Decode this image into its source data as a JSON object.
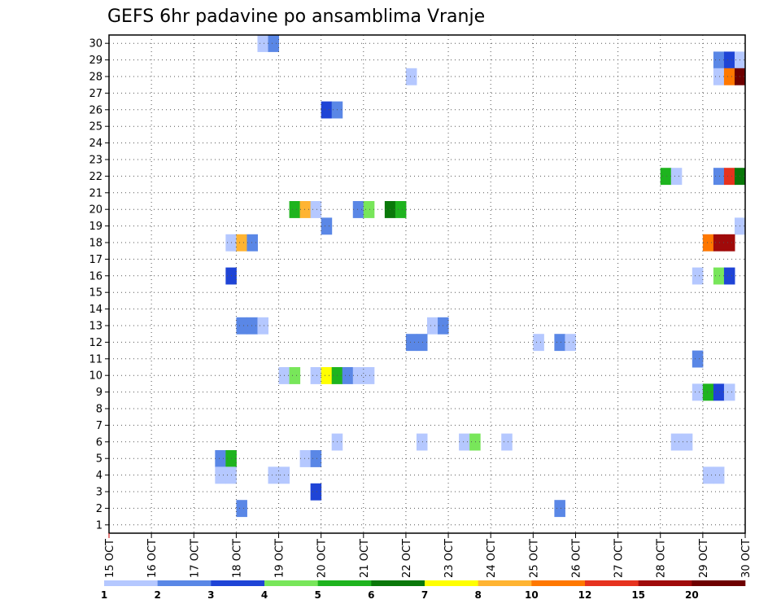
{
  "chart_data": {
    "type": "heatmap",
    "title": "GEFS 6hr padavine po ansamblima Vranje",
    "xlabel": "",
    "ylabel": "",
    "x_tick_labels": [
      "15 OCT",
      "16 OCT",
      "17 OCT",
      "18 OCT",
      "19 OCT",
      "20 OCT",
      "21 OCT",
      "22 OCT",
      "23 OCT",
      "24 OCT",
      "25 OCT",
      "26 OCT",
      "27 OCT",
      "28 OCT",
      "29 OCT",
      "30 OCT"
    ],
    "y_range": [
      1,
      30
    ],
    "xlim_days": [
      15,
      30
    ],
    "grid": true,
    "legend_placement": "bottom",
    "legend_labels": [
      "1",
      "2",
      "3",
      "4",
      "5",
      "6",
      "7",
      "8",
      "10",
      "12",
      "15",
      "20"
    ],
    "legend_colors": [
      "#b5c8ff",
      "#5a87e6",
      "#1f44d6",
      "#78e65a",
      "#1eb41e",
      "#0a780a",
      "#ffff00",
      "#ffb432",
      "#ff7800",
      "#e6321e",
      "#a00a0a",
      "#6e0000"
    ],
    "cells": [
      {
        "day": 18.5,
        "m": 30,
        "c": 1
      },
      {
        "day": 18.75,
        "m": 30,
        "c": 2
      },
      {
        "day": 29.25,
        "m": 29,
        "c": 2
      },
      {
        "day": 29.5,
        "m": 29,
        "c": 3
      },
      {
        "day": 29.75,
        "m": 29,
        "c": 1
      },
      {
        "day": 22.0,
        "m": 28,
        "c": 1
      },
      {
        "day": 29.25,
        "m": 28,
        "c": 1
      },
      {
        "day": 29.5,
        "m": 28,
        "c": 9
      },
      {
        "day": 29.75,
        "m": 28,
        "c": 12
      },
      {
        "day": 20.0,
        "m": 26,
        "c": 3
      },
      {
        "day": 20.25,
        "m": 26,
        "c": 2
      },
      {
        "day": 28.0,
        "m": 22,
        "c": 5
      },
      {
        "day": 28.25,
        "m": 22,
        "c": 1
      },
      {
        "day": 29.25,
        "m": 22,
        "c": 2
      },
      {
        "day": 29.5,
        "m": 22,
        "c": 10
      },
      {
        "day": 29.75,
        "m": 22,
        "c": 6
      },
      {
        "day": 19.25,
        "m": 20,
        "c": 5
      },
      {
        "day": 19.5,
        "m": 20,
        "c": 8
      },
      {
        "day": 19.75,
        "m": 20,
        "c": 1
      },
      {
        "day": 20.75,
        "m": 20,
        "c": 2
      },
      {
        "day": 21.0,
        "m": 20,
        "c": 4
      },
      {
        "day": 21.5,
        "m": 20,
        "c": 6
      },
      {
        "day": 21.75,
        "m": 20,
        "c": 5
      },
      {
        "day": 20.0,
        "m": 19,
        "c": 2
      },
      {
        "day": 29.75,
        "m": 19,
        "c": 1
      },
      {
        "day": 17.75,
        "m": 18,
        "c": 1
      },
      {
        "day": 18.0,
        "m": 18,
        "c": 8
      },
      {
        "day": 18.25,
        "m": 18,
        "c": 2
      },
      {
        "day": 29.0,
        "m": 18,
        "c": 9
      },
      {
        "day": 29.25,
        "m": 18,
        "c": 11
      },
      {
        "day": 29.5,
        "m": 18,
        "c": 11
      },
      {
        "day": 17.75,
        "m": 16,
        "c": 3
      },
      {
        "day": 28.75,
        "m": 16,
        "c": 1
      },
      {
        "day": 29.25,
        "m": 16,
        "c": 4
      },
      {
        "day": 29.5,
        "m": 16,
        "c": 3
      },
      {
        "day": 18.0,
        "m": 13,
        "c": 2
      },
      {
        "day": 18.25,
        "m": 13,
        "c": 2
      },
      {
        "day": 18.5,
        "m": 13,
        "c": 1
      },
      {
        "day": 22.5,
        "m": 13,
        "c": 1
      },
      {
        "day": 22.75,
        "m": 13,
        "c": 2
      },
      {
        "day": 22.0,
        "m": 12,
        "c": 2
      },
      {
        "day": 22.25,
        "m": 12,
        "c": 2
      },
      {
        "day": 25.0,
        "m": 12,
        "c": 1
      },
      {
        "day": 25.5,
        "m": 12,
        "c": 2
      },
      {
        "day": 25.75,
        "m": 12,
        "c": 1
      },
      {
        "day": 28.75,
        "m": 11,
        "c": 2
      },
      {
        "day": 19.0,
        "m": 10,
        "c": 1
      },
      {
        "day": 19.25,
        "m": 10,
        "c": 4
      },
      {
        "day": 19.75,
        "m": 10,
        "c": 1
      },
      {
        "day": 20.0,
        "m": 10,
        "c": 7
      },
      {
        "day": 20.25,
        "m": 10,
        "c": 5
      },
      {
        "day": 20.5,
        "m": 10,
        "c": 2
      },
      {
        "day": 20.75,
        "m": 10,
        "c": 1
      },
      {
        "day": 21.0,
        "m": 10,
        "c": 1
      },
      {
        "day": 28.75,
        "m": 9,
        "c": 1
      },
      {
        "day": 29.0,
        "m": 9,
        "c": 5
      },
      {
        "day": 29.25,
        "m": 9,
        "c": 3
      },
      {
        "day": 29.5,
        "m": 9,
        "c": 1
      },
      {
        "day": 20.25,
        "m": 6,
        "c": 1
      },
      {
        "day": 22.25,
        "m": 6,
        "c": 1
      },
      {
        "day": 23.25,
        "m": 6,
        "c": 1
      },
      {
        "day": 23.5,
        "m": 6,
        "c": 4
      },
      {
        "day": 24.25,
        "m": 6,
        "c": 1
      },
      {
        "day": 28.25,
        "m": 6,
        "c": 1
      },
      {
        "day": 28.5,
        "m": 6,
        "c": 1
      },
      {
        "day": 17.5,
        "m": 5,
        "c": 2
      },
      {
        "day": 17.75,
        "m": 5,
        "c": 5
      },
      {
        "day": 19.5,
        "m": 5,
        "c": 1
      },
      {
        "day": 19.75,
        "m": 5,
        "c": 2
      },
      {
        "day": 17.5,
        "m": 4,
        "c": 1
      },
      {
        "day": 17.75,
        "m": 4,
        "c": 1
      },
      {
        "day": 18.75,
        "m": 4,
        "c": 1
      },
      {
        "day": 19.0,
        "m": 4,
        "c": 1
      },
      {
        "day": 29.0,
        "m": 4,
        "c": 1
      },
      {
        "day": 29.25,
        "m": 4,
        "c": 1
      },
      {
        "day": 19.75,
        "m": 3,
        "c": 3
      },
      {
        "day": 18.0,
        "m": 2,
        "c": 2
      },
      {
        "day": 25.5,
        "m": 2,
        "c": 2
      }
    ]
  }
}
